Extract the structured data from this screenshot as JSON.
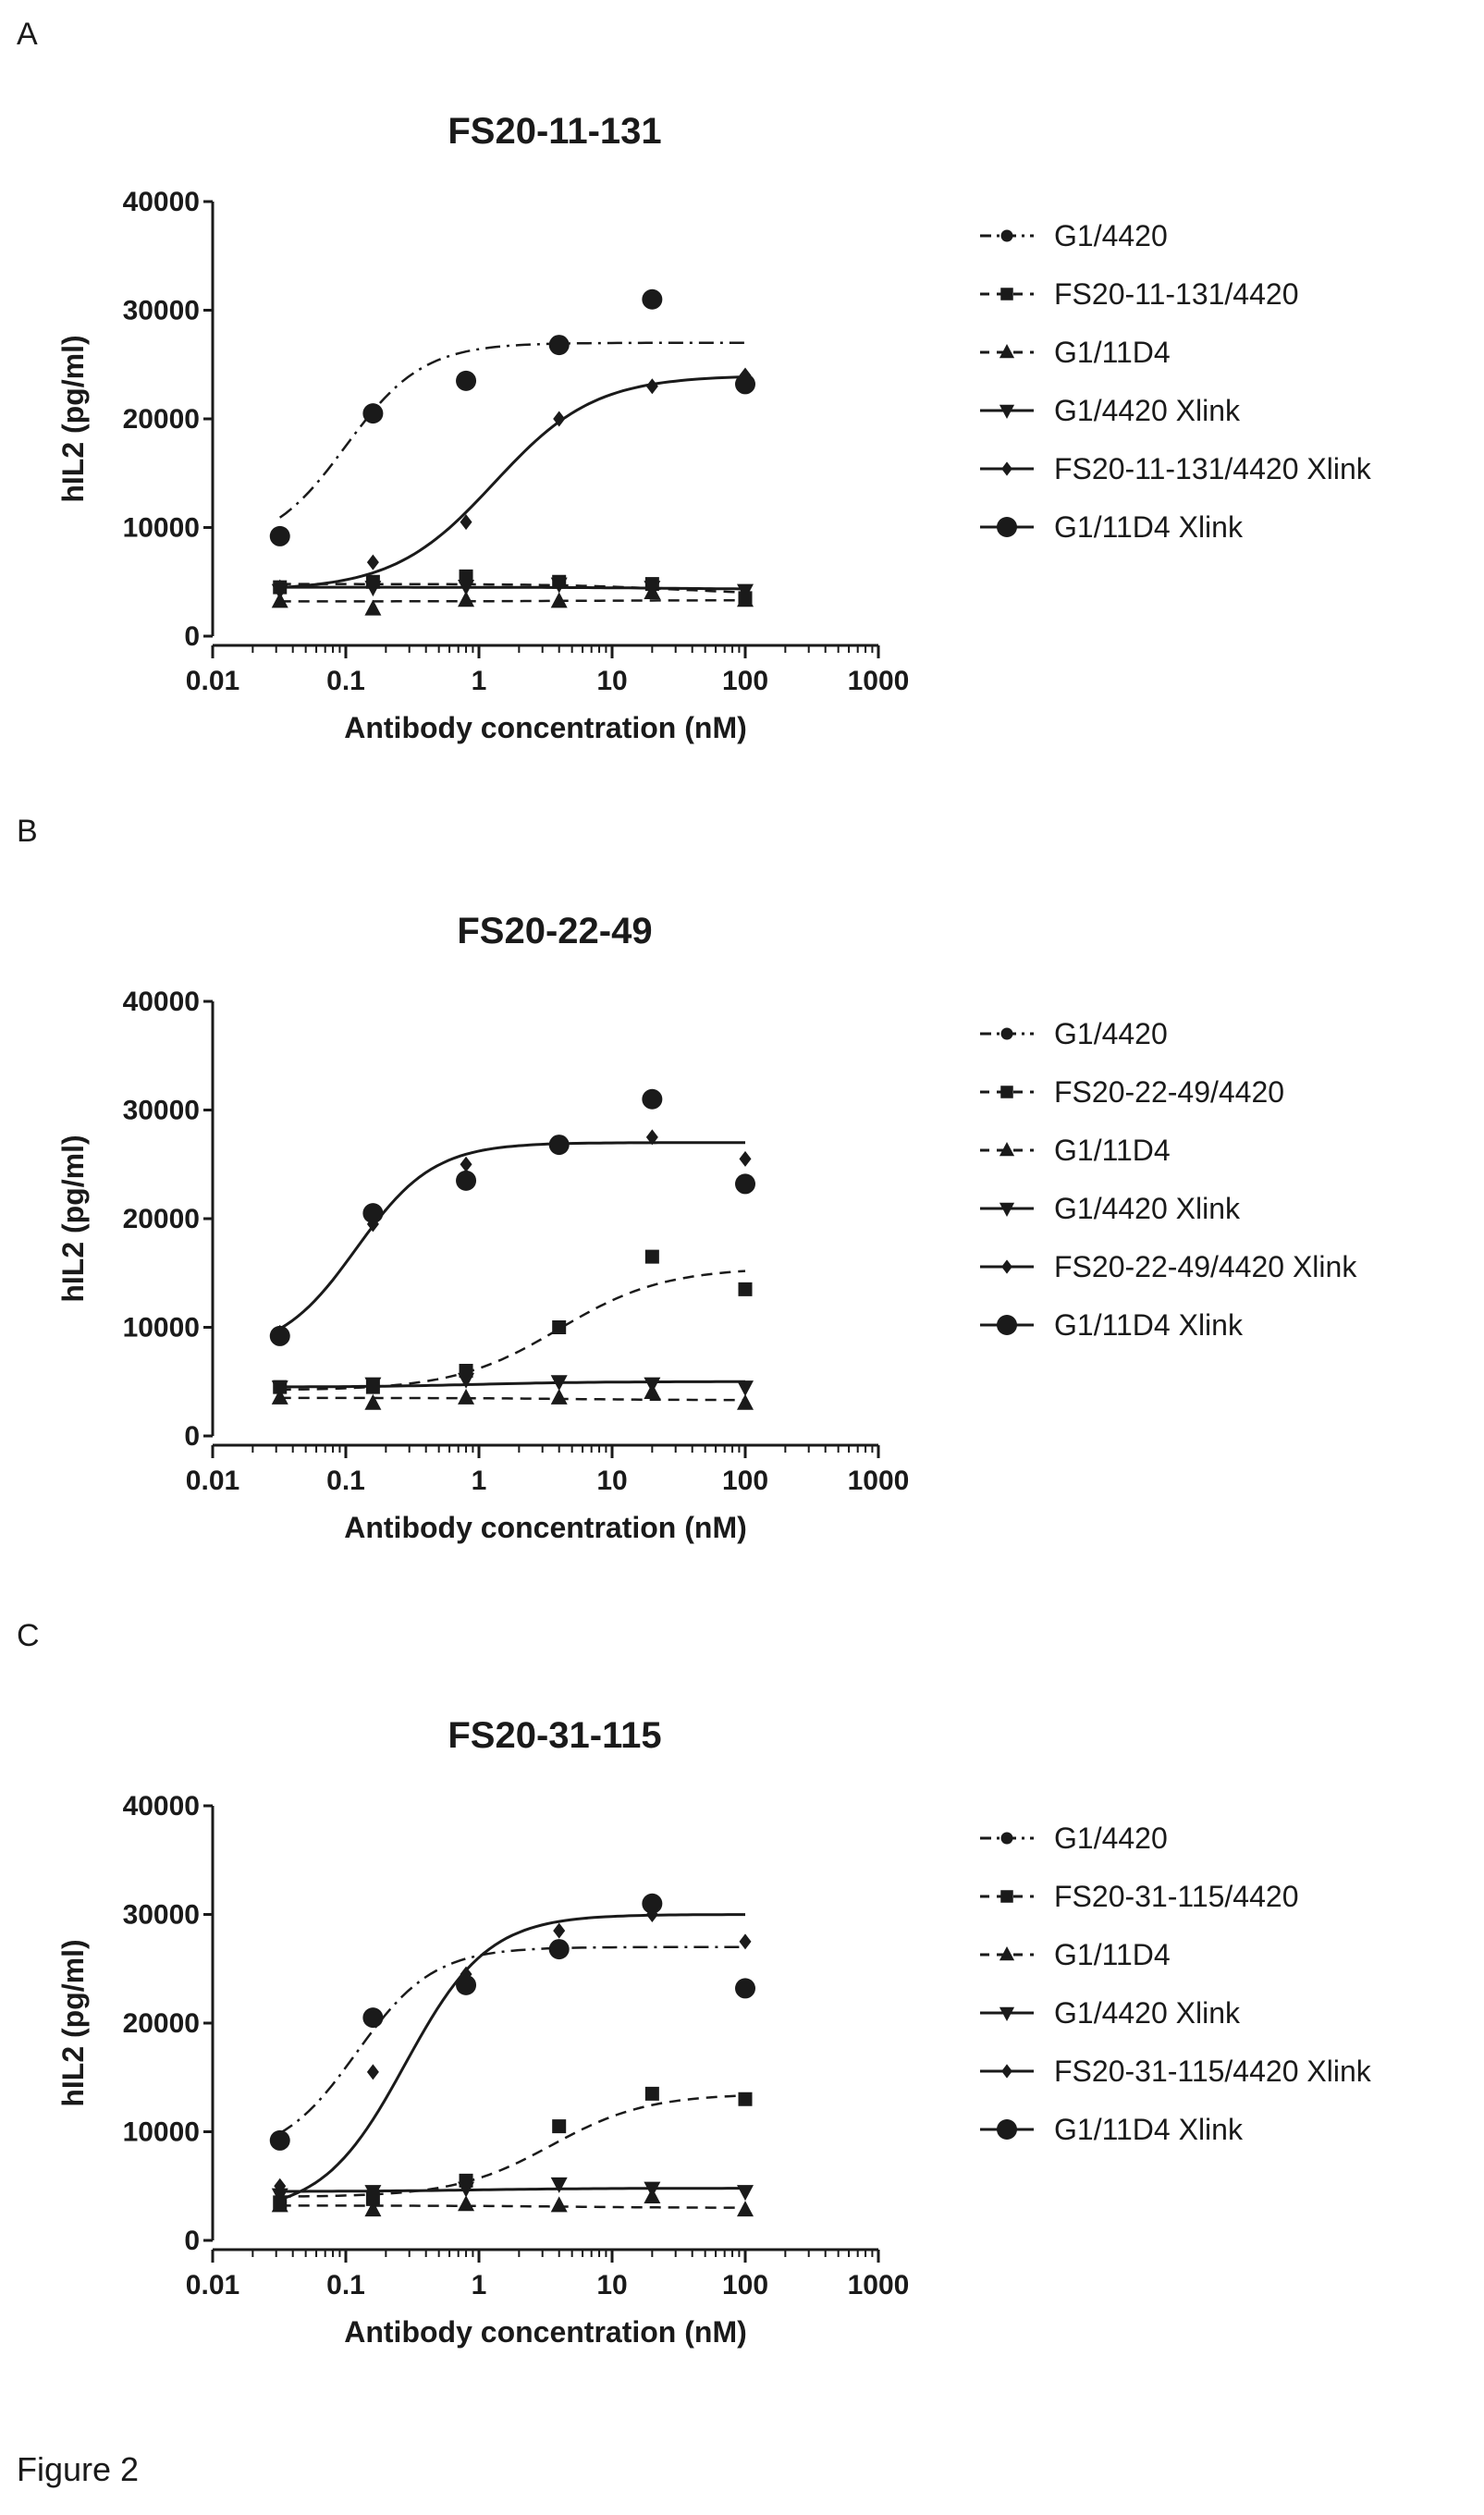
{
  "figure_caption": "Figure 2",
  "panels": [
    {
      "letter": "A",
      "title": "FS20-11-131"
    },
    {
      "letter": "B",
      "title": "FS20-22-49"
    },
    {
      "letter": "C",
      "title": "FS20-31-115"
    }
  ],
  "colors": {
    "ink": "#1a1a1a"
  },
  "chart_data": [
    {
      "type": "scatter",
      "title": "FS20-11-131",
      "xlabel": "Antibody concentration (nM)",
      "ylabel": "hIL2 (pg/ml)",
      "x_scale": "log",
      "xlim": [
        0.01,
        1000
      ],
      "ylim": [
        0,
        40000
      ],
      "x_ticks": [
        "0.01",
        "0.1",
        "1",
        "10",
        "100",
        "1000"
      ],
      "y_ticks": [
        "0",
        "10000",
        "20000",
        "30000",
        "40000"
      ],
      "legend_position": "right",
      "x": [
        0.032,
        0.16,
        0.8,
        4,
        20,
        100
      ],
      "series": [
        {
          "name": "G1/4420",
          "marker": "circle-small",
          "line": "dashdot",
          "values": [
            9200,
            20500,
            23500,
            26800,
            31000,
            23200
          ],
          "fit": [
            8000,
            27000,
            0.1,
            1.5
          ]
        },
        {
          "name": "FS20-11-131/4420",
          "marker": "square",
          "line": "dashed",
          "values": [
            4500,
            5000,
            5500,
            5000,
            4800,
            3500
          ],
          "fit": [
            4800,
            3800,
            30,
            1
          ]
        },
        {
          "name": "G1/11D4",
          "marker": "triangle-up",
          "line": "dashed",
          "values": [
            3200,
            2500,
            3300,
            3200,
            4000,
            3300
          ],
          "fit": [
            3200,
            3300,
            5,
            1
          ]
        },
        {
          "name": "G1/4420 Xlink",
          "marker": "triangle-down",
          "line": "solid",
          "values": [
            4200,
            4500,
            4600,
            4800,
            4500,
            4200
          ],
          "fit": [
            4500,
            4300,
            30,
            1
          ]
        },
        {
          "name": "FS20-11-131/4420 Xlink",
          "marker": "diamond",
          "line": "solid",
          "values": [
            4500,
            6800,
            10500,
            20000,
            23000,
            24000
          ],
          "fit": [
            4200,
            24000,
            1.3,
            1.15
          ]
        },
        {
          "name": "G1/11D4 Xlink",
          "marker": "circle",
          "line": "none",
          "values": [
            9200,
            20500,
            23500,
            26800,
            31000,
            23200
          ]
        }
      ]
    },
    {
      "type": "scatter",
      "title": "FS20-22-49",
      "xlabel": "Antibody concentration (nM)",
      "ylabel": "hIL2 (pg/ml)",
      "x_scale": "log",
      "xlim": [
        0.01,
        1000
      ],
      "ylim": [
        0,
        40000
      ],
      "x_ticks": [
        "0.01",
        "0.1",
        "1",
        "10",
        "100",
        "1000"
      ],
      "y_ticks": [
        "0",
        "10000",
        "20000",
        "30000",
        "40000"
      ],
      "legend_position": "right",
      "x": [
        0.032,
        0.16,
        0.8,
        4,
        20,
        100
      ],
      "series": [
        {
          "name": "G1/4420",
          "marker": "circle-small",
          "line": "dashdot",
          "values": [
            9200,
            20500,
            23500,
            26800,
            31000,
            23200
          ],
          "fit": [
            7500,
            27000,
            0.12,
            1.5
          ]
        },
        {
          "name": "FS20-22-49/4420",
          "marker": "square",
          "line": "dashed",
          "values": [
            4500,
            4500,
            6000,
            10000,
            16500,
            13500
          ],
          "fit": [
            4200,
            15500,
            4,
            1.1
          ]
        },
        {
          "name": "G1/11D4",
          "marker": "triangle-up",
          "line": "dashed",
          "values": [
            3500,
            3000,
            3500,
            3500,
            4000,
            3000
          ],
          "fit": [
            3500,
            3300,
            5,
            1
          ]
        },
        {
          "name": "G1/4420 Xlink",
          "marker": "triangle-down",
          "line": "solid",
          "values": [
            4500,
            4800,
            5200,
            5000,
            4800,
            4500
          ],
          "fit": [
            4500,
            5000,
            1,
            1
          ]
        },
        {
          "name": "FS20-22-49/4420 Xlink",
          "marker": "diamond",
          "line": "solid",
          "values": [
            9500,
            19500,
            25000,
            27000,
            27500,
            25500
          ],
          "fit": [
            7500,
            27000,
            0.12,
            1.5
          ]
        },
        {
          "name": "G1/11D4 Xlink",
          "marker": "circle",
          "line": "none",
          "values": [
            9200,
            20500,
            23500,
            26800,
            31000,
            23200
          ]
        }
      ]
    },
    {
      "type": "scatter",
      "title": "FS20-31-115",
      "xlabel": "Antibody concentration (nM)",
      "ylabel": "hIL2 (pg/ml)",
      "x_scale": "log",
      "xlim": [
        0.01,
        1000
      ],
      "ylim": [
        0,
        40000
      ],
      "x_ticks": [
        "0.01",
        "0.1",
        "1",
        "10",
        "100",
        "1000"
      ],
      "y_ticks": [
        "0",
        "10000",
        "20000",
        "30000",
        "40000"
      ],
      "legend_position": "right",
      "x": [
        0.032,
        0.16,
        0.8,
        4,
        20,
        100
      ],
      "series": [
        {
          "name": "G1/4420",
          "marker": "circle-small",
          "line": "dashdot",
          "values": [
            9200,
            20500,
            23500,
            26800,
            31000,
            23200
          ],
          "fit": [
            7500,
            27000,
            0.12,
            1.5
          ]
        },
        {
          "name": "FS20-31-115/4420",
          "marker": "square",
          "line": "dashed",
          "values": [
            3500,
            3800,
            5500,
            10500,
            13500,
            13000
          ],
          "fit": [
            4000,
            13500,
            3.5,
            1.2
          ]
        },
        {
          "name": "G1/11D4",
          "marker": "triangle-up",
          "line": "dashed",
          "values": [
            3200,
            2800,
            3300,
            3200,
            4000,
            2800
          ],
          "fit": [
            3200,
            3000,
            5,
            1
          ]
        },
        {
          "name": "G1/4420 Xlink",
          "marker": "triangle-down",
          "line": "solid",
          "values": [
            4200,
            4500,
            4800,
            5200,
            4800,
            4500
          ],
          "fit": [
            4500,
            4800,
            1,
            1
          ]
        },
        {
          "name": "FS20-31-115/4420 Xlink",
          "marker": "diamond",
          "line": "solid",
          "values": [
            5000,
            15500,
            24500,
            28500,
            30000,
            27500
          ],
          "fit": [
            2500,
            30000,
            0.28,
            1.4
          ]
        },
        {
          "name": "G1/11D4 Xlink",
          "marker": "circle",
          "line": "none",
          "values": [
            9200,
            20500,
            23500,
            26800,
            31000,
            23200
          ]
        }
      ]
    }
  ]
}
